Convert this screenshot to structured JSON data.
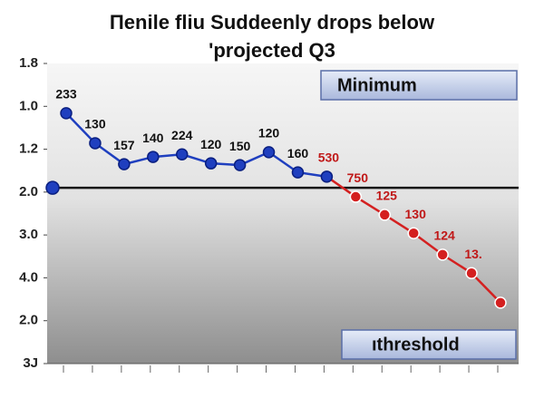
{
  "chart_data": {
    "type": "line",
    "title": [
      "Πenile fliu Suddeenly drops below",
      "'projected Q3"
    ],
    "categories": [
      null,
      null,
      null,
      null,
      null,
      null,
      null,
      null,
      null,
      null,
      null,
      null,
      null,
      null,
      null,
      null
    ],
    "ylim": [
      0,
      7
    ],
    "yticks": [
      {
        "value": 7,
        "label": "1.8"
      },
      {
        "value": 6,
        "label": "1.0"
      },
      {
        "value": 5,
        "label": "1.2"
      },
      {
        "value": 4,
        "label": "2.0"
      },
      {
        "value": 3,
        "label": "3.0"
      },
      {
        "value": 2,
        "label": "4.0"
      },
      {
        "value": 1,
        "label": "2.0"
      },
      {
        "value": 0,
        "label": "3J"
      }
    ],
    "threshold": 4.1,
    "series": [
      {
        "color": "#1f3fbf",
        "values": [
          5.84,
          5.14,
          4.65,
          4.82,
          4.88,
          4.67,
          4.63,
          4.93,
          4.46,
          4.36,
          null,
          null,
          null,
          null,
          null,
          null
        ],
        "labels": [
          "233",
          "130",
          "157",
          "140",
          "224",
          "120",
          "150",
          "120",
          "160",
          null,
          null,
          null,
          null,
          null,
          null,
          null
        ],
        "label_color": "#111"
      },
      {
        "color": "#d42020",
        "values": [
          null,
          null,
          null,
          null,
          null,
          null,
          null,
          null,
          null,
          4.36,
          3.89,
          3.47,
          3.04,
          2.54,
          2.11,
          1.42
        ],
        "labels": [
          null,
          null,
          null,
          null,
          null,
          null,
          null,
          null,
          null,
          "530",
          "750",
          "125",
          "130",
          "124",
          "13.",
          null
        ],
        "label_color": "#c01818"
      }
    ],
    "annotations": [
      "Minimum",
      "ıthreshold"
    ]
  }
}
